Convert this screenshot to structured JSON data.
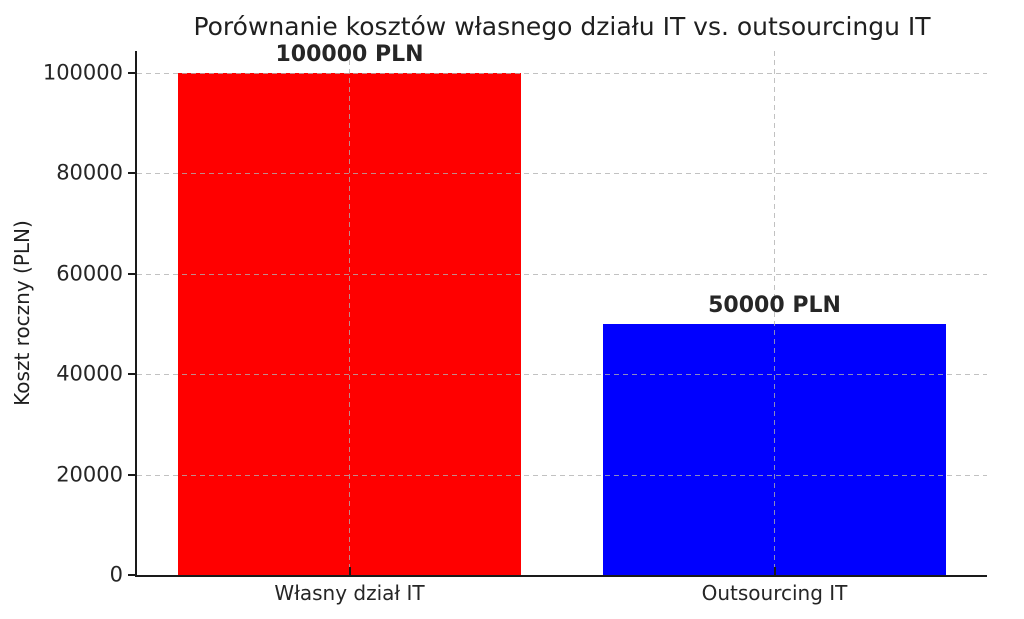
{
  "chart_data": {
    "type": "bar",
    "title": "Porównanie kosztów własnego działu IT vs. outsourcingu IT",
    "ylabel": "Koszt roczny (PLN)",
    "xlabel": "",
    "categories": [
      "Własny dział IT",
      "Outsourcing IT"
    ],
    "values": [
      100000,
      50000
    ],
    "value_labels": [
      "100000 PLN",
      "50000 PLN"
    ],
    "bar_colors": [
      "#ff0000",
      "#0000ff"
    ],
    "yticks": [
      "0",
      "20000",
      "40000",
      "60000",
      "80000",
      "100000"
    ],
    "ytick_values": [
      0,
      20000,
      40000,
      60000,
      80000,
      100000
    ],
    "ylim": [
      0,
      104400
    ],
    "bar_width_fraction": 0.806,
    "grid": {
      "visible": true,
      "style": "dashed",
      "color": "#b0b0b0",
      "drawn_over_bars": true
    },
    "legend_position": "none",
    "background_color": "#ffffff",
    "spine_color": "#1a1a1a",
    "text_color": "#262626"
  }
}
